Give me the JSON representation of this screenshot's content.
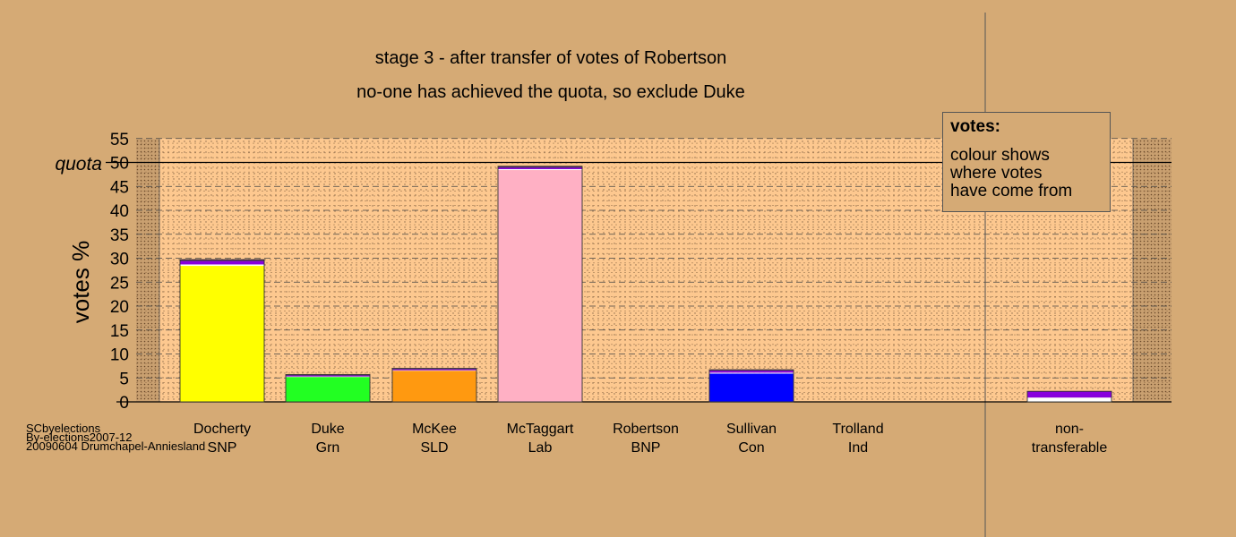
{
  "titles": {
    "line1": "stage 3 - after transfer of votes of Robertson",
    "line2": "no-one has achieved the quota, so exclude Duke"
  },
  "quota_label": "quota",
  "legend": {
    "title": "votes:",
    "lines": [
      "colour shows",
      "where votes",
      "have come from"
    ]
  },
  "source": {
    "lines": [
      "SCbyelections",
      "By-elections2007-12",
      "20090604 Drumchapel-Anniesland"
    ]
  },
  "colors": {
    "background": "#d5aa75",
    "plot_area": "#fdc88f",
    "Docherty": "#ffff00",
    "Duke": "#22ff22",
    "McKee": "#ff9910",
    "McTaggart": "#ffb0c4",
    "Sullivan": "#0000ff",
    "transfer_purple": "#8800dd",
    "transfer_white": "#ffffff",
    "transfer_dark": "#442266"
  },
  "chart_data": {
    "type": "bar",
    "ylabel": "votes %",
    "ylim": [
      0,
      55
    ],
    "yticks": [
      0,
      5,
      10,
      15,
      20,
      25,
      30,
      35,
      40,
      45,
      50,
      55
    ],
    "quota": 50,
    "grid": true,
    "legend_position": "top-right",
    "categories": [
      {
        "name": "Docherty",
        "party": "SNP",
        "segments": [
          {
            "value": 28.4,
            "color": "#ffff00"
          },
          {
            "value": 0.3,
            "color": "#ffffff"
          },
          {
            "value": 0.7,
            "color": "#8800dd"
          },
          {
            "value": 0.3,
            "color": "#442266"
          }
        ]
      },
      {
        "name": "Duke",
        "party": "Grn",
        "segments": [
          {
            "value": 5.2,
            "color": "#22ff22"
          },
          {
            "value": 0.1,
            "color": "#ffffff"
          },
          {
            "value": 0.2,
            "color": "#8800dd"
          },
          {
            "value": 0.2,
            "color": "#442266"
          }
        ]
      },
      {
        "name": "McKee",
        "party": "SLD",
        "segments": [
          {
            "value": 6.5,
            "color": "#ff9910"
          },
          {
            "value": 0.1,
            "color": "#ffffff"
          },
          {
            "value": 0.2,
            "color": "#8800dd"
          },
          {
            "value": 0.2,
            "color": "#442266"
          }
        ]
      },
      {
        "name": "McTaggart",
        "party": "Lab",
        "segments": [
          {
            "value": 48.4,
            "color": "#ffb0c4"
          },
          {
            "value": 0.2,
            "color": "#ffffff"
          },
          {
            "value": 0.3,
            "color": "#8800dd"
          },
          {
            "value": 0.3,
            "color": "#442266"
          }
        ]
      },
      {
        "name": "Robertson",
        "party": "BNP",
        "segments": []
      },
      {
        "name": "Sullivan",
        "party": "Con",
        "segments": [
          {
            "value": 5.9,
            "color": "#0000ff"
          },
          {
            "value": 0.2,
            "color": "#ffffff"
          },
          {
            "value": 0.4,
            "color": "#8800dd"
          },
          {
            "value": 0.2,
            "color": "#442266"
          }
        ]
      },
      {
        "name": "Trolland",
        "party": "Ind",
        "segments": []
      },
      {
        "name": "non-",
        "party": "transferable",
        "segments": [
          {
            "value": 0.9,
            "color": "#ffffff"
          },
          {
            "value": 1.3,
            "color": "#8800dd"
          }
        ]
      }
    ]
  }
}
